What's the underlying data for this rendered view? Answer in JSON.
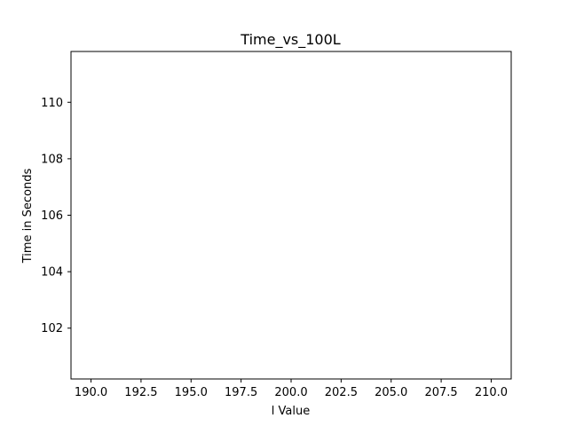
{
  "chart_data": {
    "type": "line",
    "title": "Time_vs_100L",
    "xlabel": "l Value",
    "ylabel": "Time in Seconds",
    "xlim": [
      189.0,
      211.0
    ],
    "ylim": [
      100.2,
      111.8
    ],
    "xticks": [
      190.0,
      192.5,
      195.0,
      197.5,
      200.0,
      202.5,
      205.0,
      207.5,
      210.0
    ],
    "xtick_labels": [
      "190.0",
      "192.5",
      "195.0",
      "197.5",
      "200.0",
      "202.5",
      "205.0",
      "207.5",
      "210.0"
    ],
    "yticks": [
      102,
      104,
      106,
      108,
      110
    ],
    "ytick_labels": [
      "102",
      "104",
      "106",
      "108",
      "110"
    ],
    "series": [],
    "grid": false,
    "legend": "none",
    "colors": {
      "axes": "#000000",
      "background": "#ffffff"
    }
  }
}
